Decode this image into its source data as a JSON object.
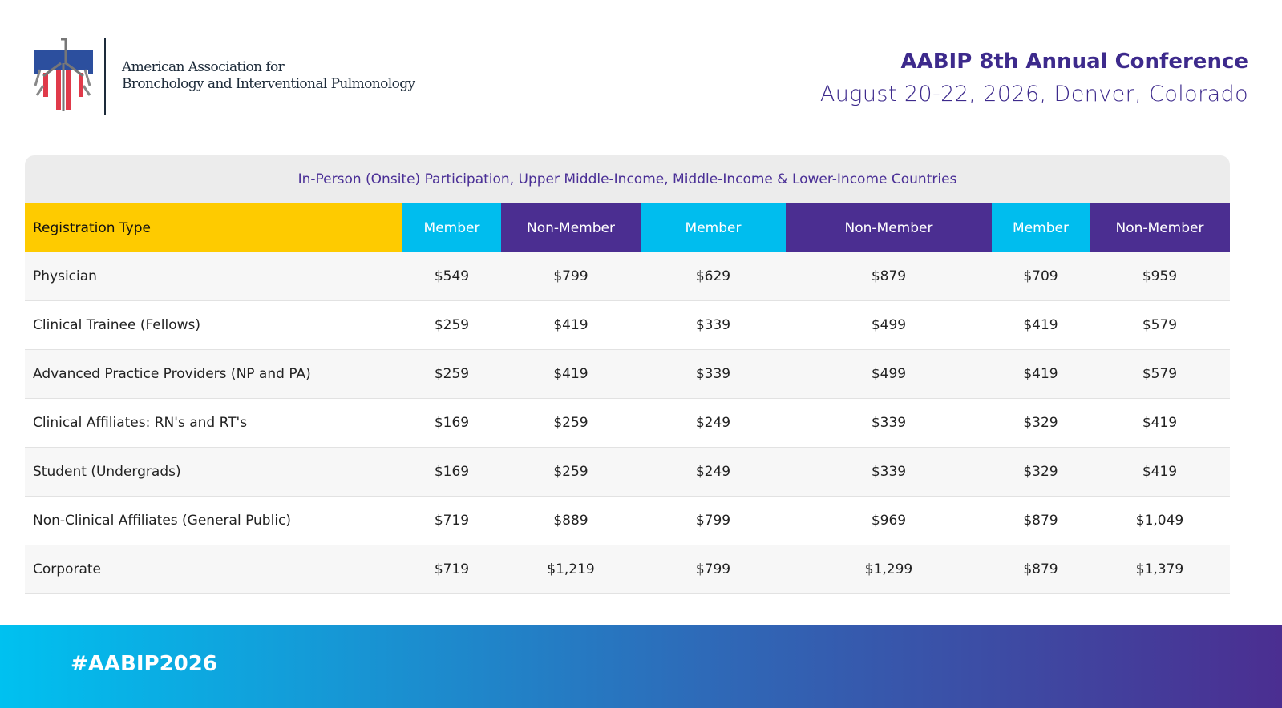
{
  "org": {
    "line1": "American Association for",
    "line2": "Bronchology and Interventional Pulmonology"
  },
  "conference": {
    "title": "AABIP 8th Annual Conference",
    "dates": "August 20-22, 2026, Denver, Colorado"
  },
  "table": {
    "caption": "In-Person (Onsite) Participation, Upper Middle-Income, Middle-Income & Lower-Income Countries",
    "headers": [
      "Registration Type",
      "Member",
      "Non-Member",
      "Member",
      "Non-Member",
      "Member",
      "Non-Member"
    ],
    "rows": [
      [
        "Physician",
        "$549",
        "$799",
        "$629",
        "$879",
        "$709",
        "$959"
      ],
      [
        "Clinical Trainee (Fellows)",
        "$259",
        "$419",
        "$339",
        "$499",
        "$419",
        "$579"
      ],
      [
        "Advanced Practice Providers (NP and PA)",
        "$259",
        "$419",
        "$339",
        "$499",
        "$419",
        "$579"
      ],
      [
        "Clinical Affiliates: RN's and RT's",
        "$169",
        "$259",
        "$249",
        "$339",
        "$329",
        "$419"
      ],
      [
        "Student (Undergrads)",
        "$169",
        "$259",
        "$249",
        "$339",
        "$329",
        "$419"
      ],
      [
        "Non-Clinical Affiliates (General Public)",
        "$719",
        "$889",
        "$799",
        "$969",
        "$879",
        "$1,049"
      ],
      [
        "Corporate",
        "$719",
        "$1,219",
        "$799",
        "$1,299",
        "$879",
        "$1,379"
      ]
    ]
  },
  "footer": {
    "hashtag": "#AABIP2026"
  }
}
